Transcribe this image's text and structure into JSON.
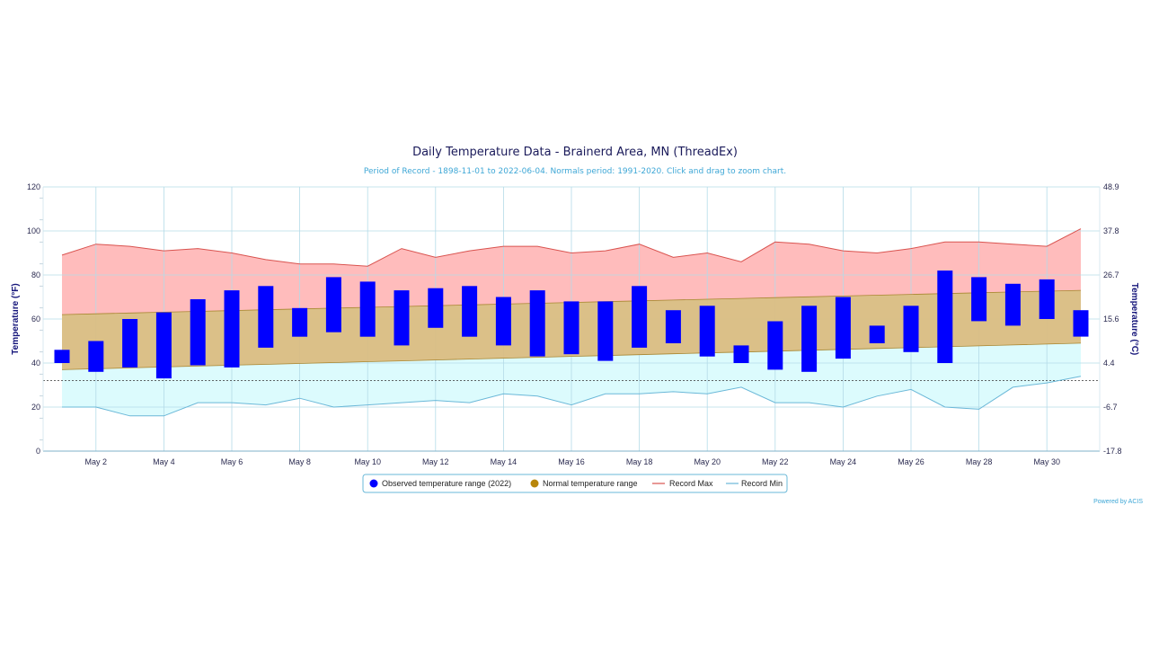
{
  "chart_data": {
    "type": "bar",
    "title": "Daily Temperature Data - Brainerd Area, MN (ThreadEx)",
    "subtitle": "Period of Record - 1898-11-01 to 2022-06-04. Normals period: 1991-2020. Click and drag to zoom chart.",
    "ylabel": "Temperature (°F)",
    "y2label": "Temperature (°C)",
    "ylim": [
      0,
      120
    ],
    "yticks": [
      "0",
      "20",
      "40",
      "60",
      "80",
      "100",
      "120"
    ],
    "y2ticks": [
      "-17.8",
      "-6.7",
      "4.4",
      "15.6",
      "26.7",
      "37.8",
      "48.9"
    ],
    "xtick_labels": [
      "May 2",
      "May 4",
      "May 6",
      "May 8",
      "May 10",
      "May 12",
      "May 14",
      "May 16",
      "May 18",
      "May 20",
      "May 22",
      "May 24",
      "May 26",
      "May 28",
      "May 30"
    ],
    "x": [
      1,
      2,
      3,
      4,
      5,
      6,
      7,
      8,
      9,
      10,
      11,
      12,
      13,
      14,
      15,
      16,
      17,
      18,
      19,
      20,
      21,
      22,
      23,
      24,
      25,
      26,
      27,
      28,
      29,
      30,
      31
    ],
    "freezing_line": 32,
    "grid": true,
    "legend_position": "bottom",
    "series": [
      {
        "name": "Observed temperature range (2022)",
        "color": "#0000ff",
        "low": [
          40,
          36,
          38,
          33,
          39,
          38,
          47,
          52,
          54,
          52,
          48,
          56,
          52,
          48,
          43,
          44,
          41,
          47,
          49,
          43,
          40,
          37,
          36,
          42,
          49,
          45,
          40,
          59,
          57,
          60,
          52
        ],
        "high": [
          46,
          50,
          60,
          63,
          69,
          73,
          75,
          65,
          79,
          77,
          73,
          74,
          75,
          70,
          73,
          68,
          68,
          75,
          64,
          66,
          48,
          59,
          66,
          70,
          57,
          66,
          82,
          79,
          76,
          78,
          64
        ]
      },
      {
        "name": "Normal temperature range",
        "color": "#c8a040",
        "low_start": 37,
        "low_end": 49,
        "high_start": 62,
        "high_end": 73
      },
      {
        "name": "Record Max",
        "color": "#d9534f",
        "values": [
          89,
          94,
          93,
          91,
          92,
          90,
          87,
          85,
          85,
          84,
          92,
          88,
          91,
          93,
          93,
          90,
          91,
          94,
          88,
          90,
          86,
          95,
          94,
          91,
          90,
          92,
          95,
          95,
          94,
          93,
          101
        ]
      },
      {
        "name": "Record Min",
        "color": "#6ab8d8",
        "values": [
          20,
          20,
          16,
          16,
          22,
          22,
          21,
          24,
          20,
          21,
          22,
          23,
          22,
          26,
          25,
          21,
          26,
          26,
          27,
          26,
          29,
          22,
          22,
          20,
          25,
          28,
          20,
          19,
          29,
          31,
          34
        ]
      }
    ]
  },
  "credit": "Powered by ACIS"
}
